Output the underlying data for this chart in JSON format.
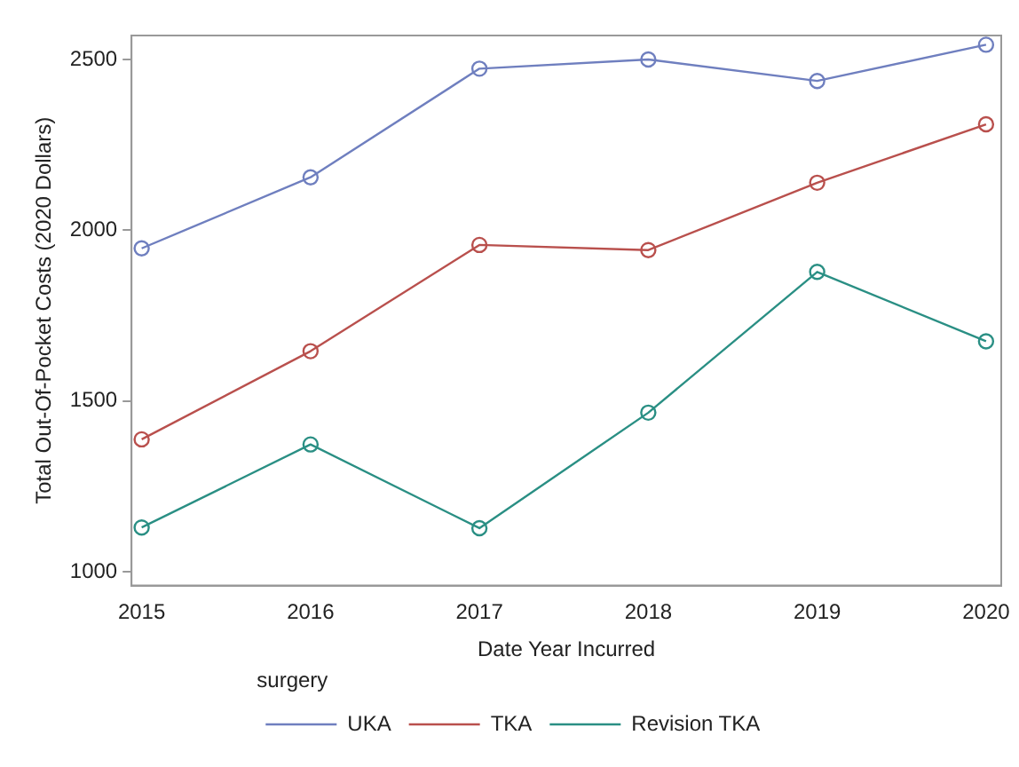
{
  "chart_data": {
    "type": "line",
    "xlabel": "Date Year Incurred",
    "ylabel": "Total Out-Of-Pocket Costs (2020 Dollars)",
    "legend_title": "surgery",
    "x": [
      2015,
      2016,
      2017,
      2018,
      2019,
      2020
    ],
    "series": [
      {
        "name": "UKA",
        "color": "#6f7fbf",
        "values": [
          1947,
          2155,
          2473,
          2500,
          2437,
          2543
        ]
      },
      {
        "name": "TKA",
        "color": "#b9504d",
        "values": [
          1388,
          1646,
          1957,
          1942,
          2139,
          2310
        ]
      },
      {
        "name": "Revision TKA",
        "color": "#2a8f84",
        "values": [
          1130,
          1373,
          1128,
          1466,
          1878,
          1675
        ]
      }
    ],
    "xlim": [
      2014.94,
      2020.09
    ],
    "xticks": [
      2015,
      2016,
      2017,
      2018,
      2019,
      2020
    ],
    "ylim": [
      960,
      2570
    ],
    "yticks": [
      1000,
      1500,
      2000,
      2500
    ],
    "grid": false,
    "legend": "bottom",
    "marker": "circle",
    "line_style": "solid"
  }
}
